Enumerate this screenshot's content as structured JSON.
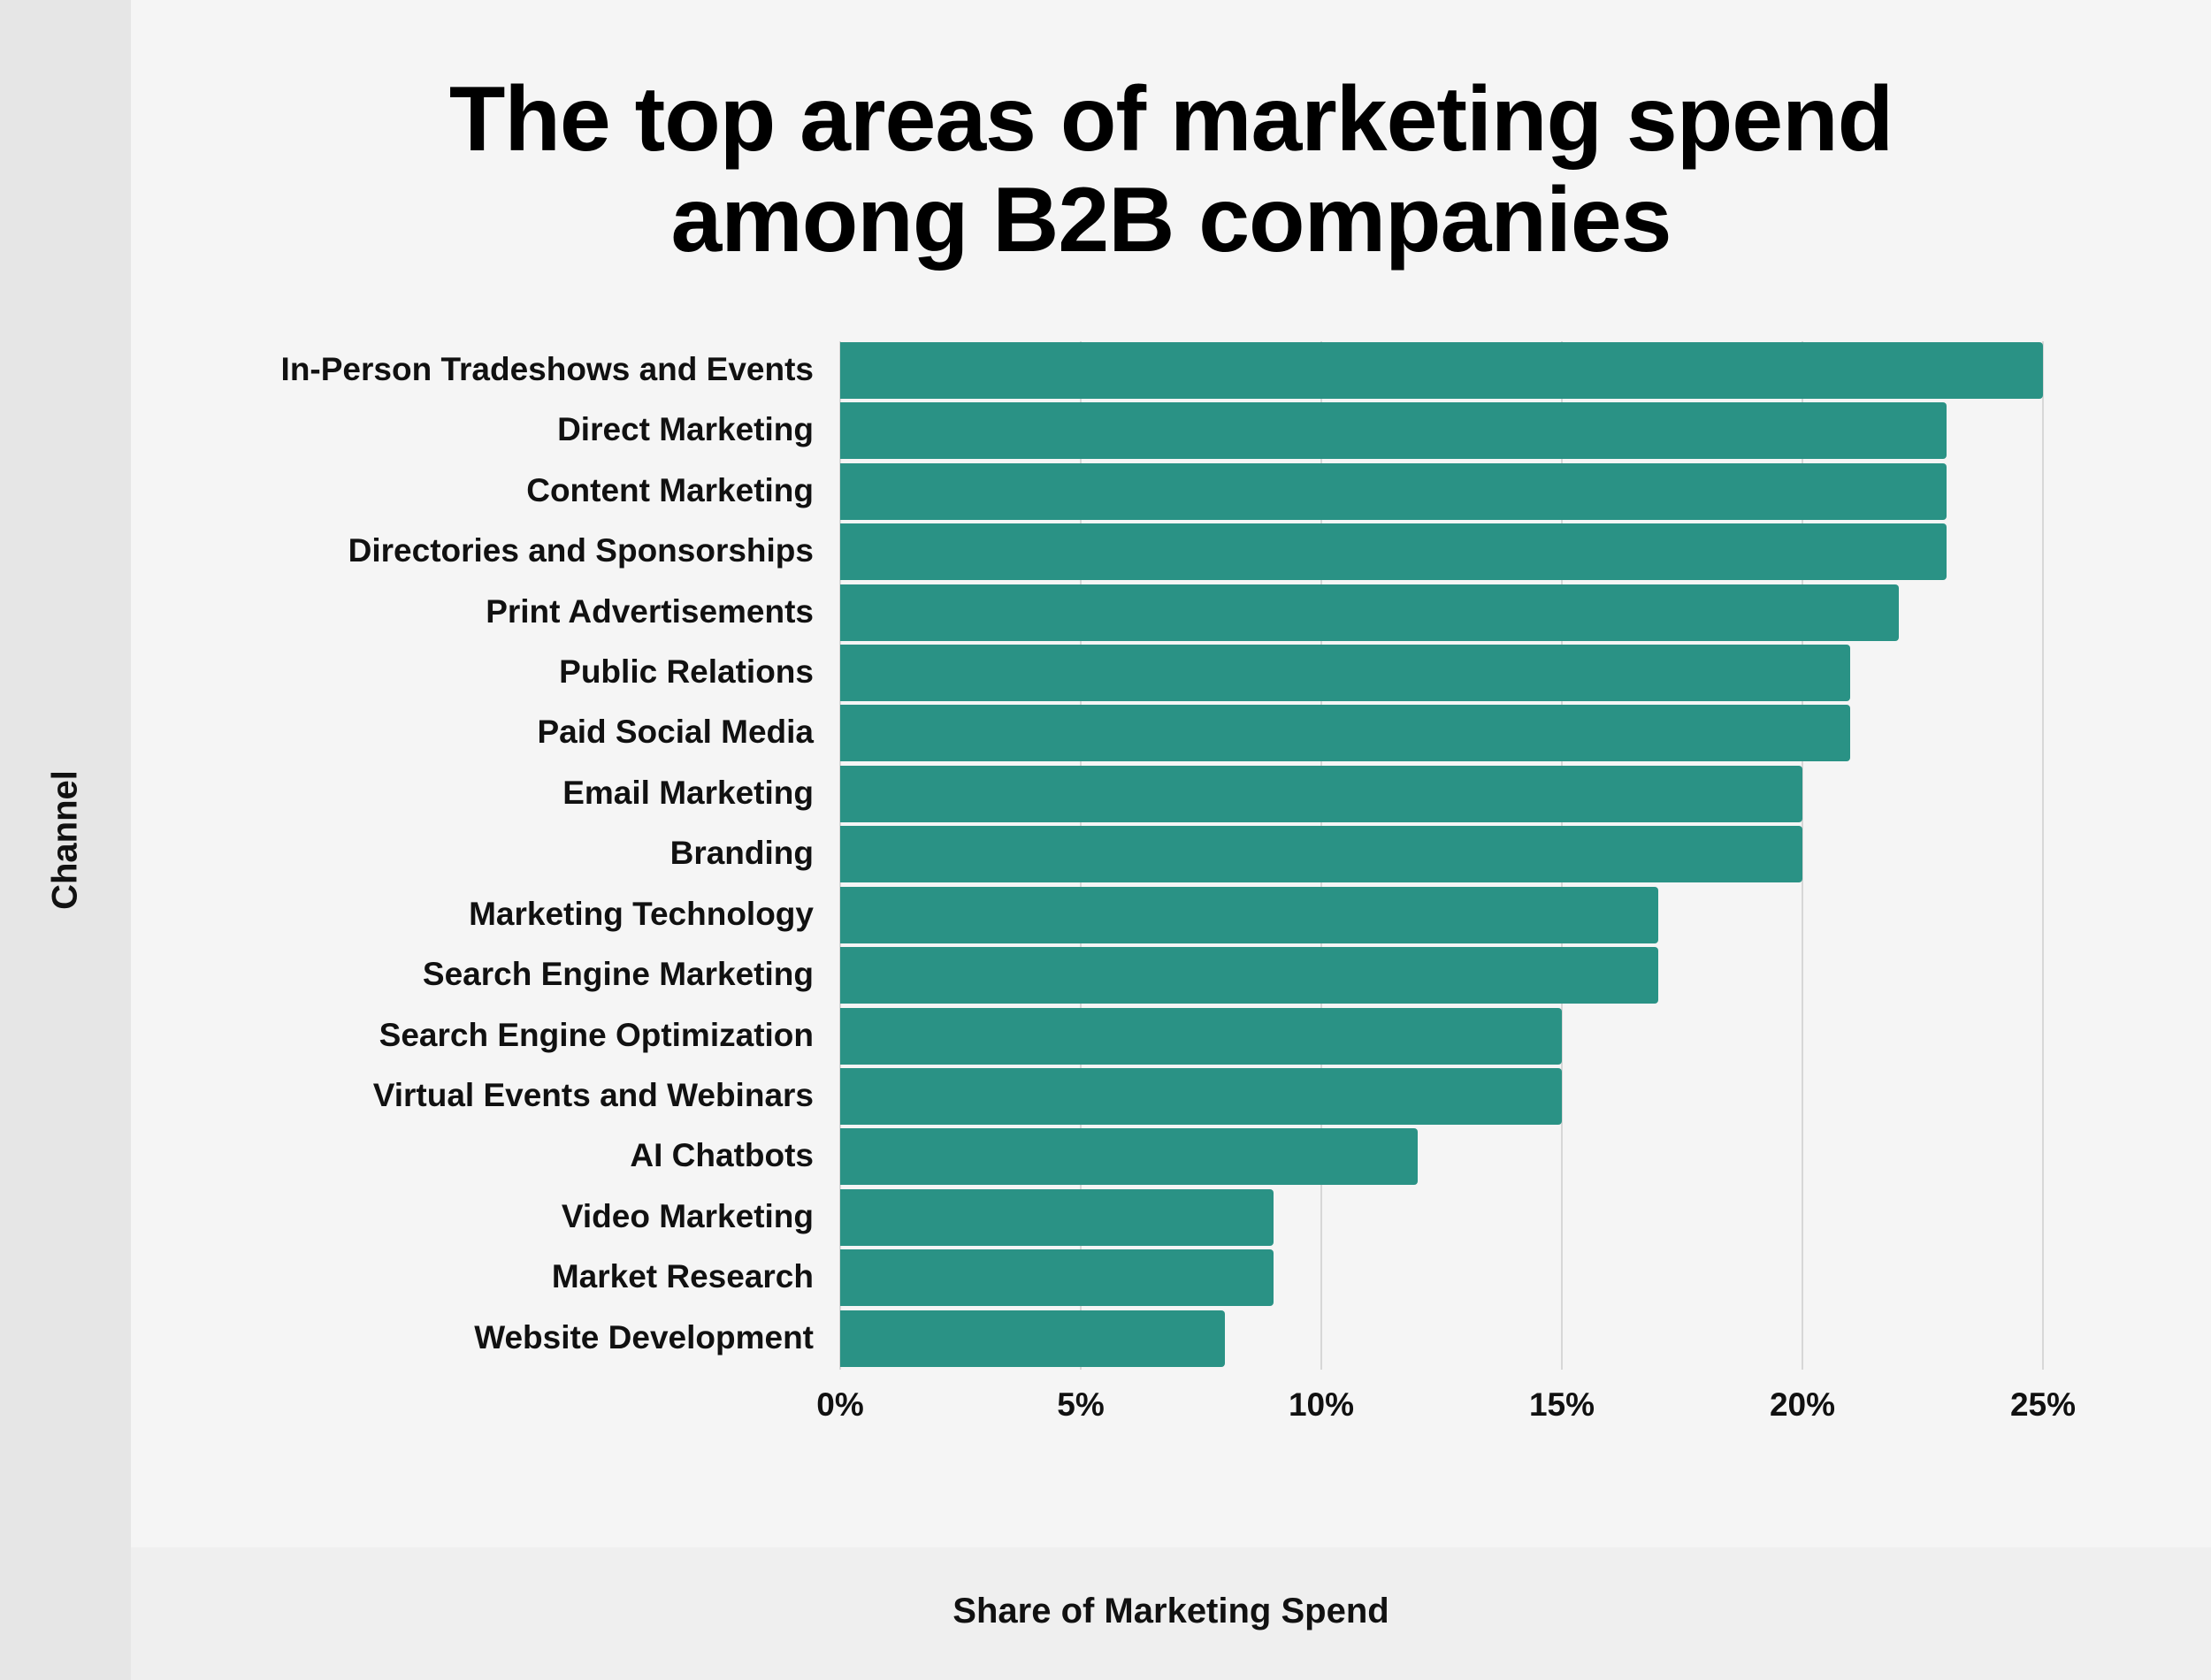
{
  "title_line1": "The top areas of marketing spend",
  "title_line2": "among B2B companies",
  "bar_color": "#2a9285",
  "chart_data": {
    "type": "bar",
    "orientation": "horizontal",
    "title": "The top areas of marketing spend among B2B companies",
    "xlabel": "Share of Marketing Spend",
    "ylabel": "Channel",
    "xlim": [
      0,
      25
    ],
    "x_ticks": [
      "0%",
      "5%",
      "10%",
      "15%",
      "20%",
      "25%"
    ],
    "grid": true,
    "legend": "none",
    "categories": [
      "In-Person Tradeshows and Events",
      "Direct Marketing",
      "Content Marketing",
      "Directories and Sponsorships",
      "Print Advertisements",
      "Public Relations",
      "Paid Social Media",
      "Email Marketing",
      "Branding",
      "Marketing Technology",
      "Search Engine Marketing",
      "Search Engine Optimization",
      "Virtual Events and Webinars",
      "AI Chatbots",
      "Video Marketing",
      "Market Research",
      "Website Development"
    ],
    "values": [
      25,
      23,
      23,
      23,
      22,
      21,
      21,
      20,
      20,
      17,
      17,
      15,
      15,
      12,
      9,
      9,
      8
    ]
  }
}
